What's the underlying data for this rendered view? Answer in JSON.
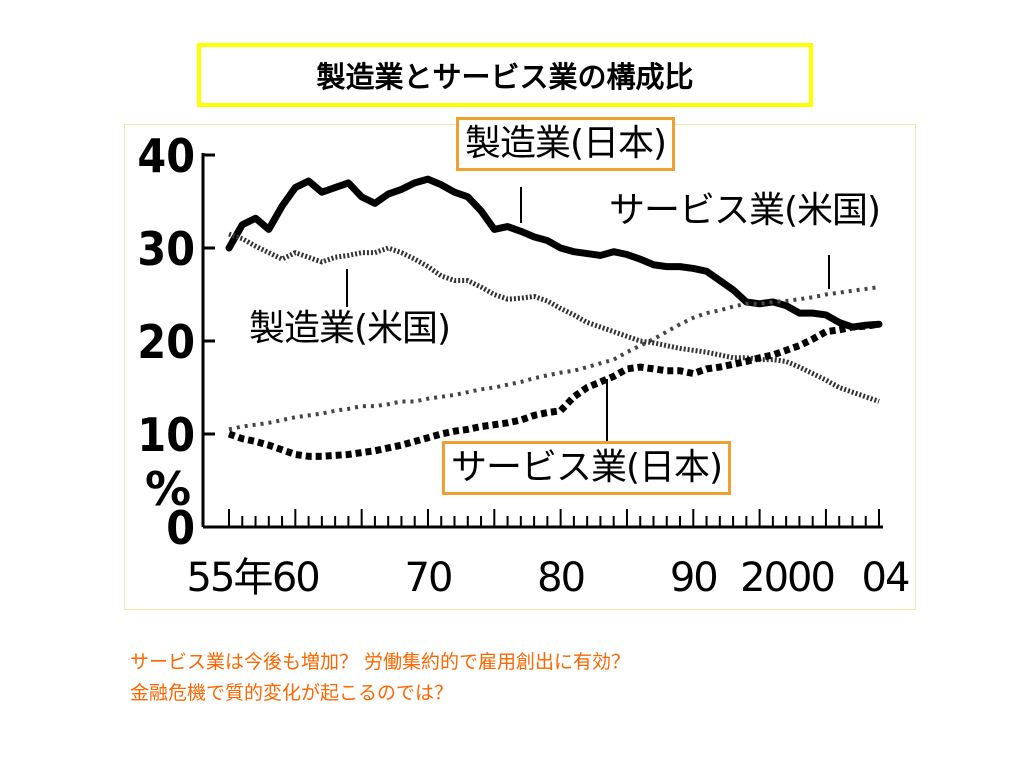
{
  "slide": {
    "title": "製造業とサービス業の構成比",
    "notes": [
      "サービス業は今後も増加？ 労働集約的で雇用創出に有効？",
      "金融危機で質的変化が起こるのでは？"
    ]
  },
  "chart_data": {
    "type": "line",
    "ylabel": "%",
    "ylim": [
      0,
      40
    ],
    "xlim": [
      1955,
      2004
    ],
    "yticks": [
      "0",
      "10",
      "20",
      "30",
      "40"
    ],
    "xticks": [
      {
        "x": 1955,
        "label": "55年"
      },
      {
        "x": 1960,
        "label": "60"
      },
      {
        "x": 1970,
        "label": "70"
      },
      {
        "x": 1980,
        "label": "80"
      },
      {
        "x": 1990,
        "label": "90"
      },
      {
        "x": 2000,
        "label": "2000"
      },
      {
        "x": 2004,
        "label": "04"
      }
    ],
    "x": [
      1955,
      1956,
      1957,
      1958,
      1959,
      1960,
      1961,
      1962,
      1963,
      1964,
      1965,
      1966,
      1967,
      1968,
      1969,
      1970,
      1971,
      1972,
      1973,
      1974,
      1975,
      1976,
      1977,
      1978,
      1979,
      1980,
      1981,
      1982,
      1983,
      1984,
      1985,
      1986,
      1987,
      1988,
      1989,
      1990,
      1991,
      1992,
      1993,
      1994,
      1995,
      1996,
      1997,
      1998,
      1999,
      2000,
      2001,
      2002,
      2003,
      2004
    ],
    "series": [
      {
        "name": "製造業(日本)",
        "style": "solid-thick",
        "color": "#000000",
        "values": [
          30.0,
          32.5,
          33.2,
          32.0,
          34.5,
          36.5,
          37.2,
          36.0,
          36.5,
          37.0,
          35.5,
          34.8,
          35.8,
          36.3,
          37.0,
          37.4,
          36.8,
          36.0,
          35.5,
          34.0,
          32.0,
          32.3,
          31.8,
          31.2,
          30.8,
          30.0,
          29.6,
          29.4,
          29.2,
          29.6,
          29.3,
          28.8,
          28.2,
          28.0,
          28.0,
          27.8,
          27.5,
          26.5,
          25.5,
          24.2,
          24.0,
          24.2,
          23.8,
          23.0,
          23.0,
          22.8,
          22.0,
          21.5,
          21.7,
          21.8
        ]
      },
      {
        "name": "サービス業(米国)",
        "style": "dotted-x",
        "color": "#444444",
        "values": [
          10.5,
          10.8,
          11.0,
          11.2,
          11.5,
          11.8,
          12.0,
          12.2,
          12.5,
          12.7,
          13.0,
          13.0,
          13.2,
          13.5,
          13.5,
          13.8,
          14.0,
          14.2,
          14.5,
          14.8,
          15.0,
          15.3,
          15.6,
          16.0,
          16.3,
          16.6,
          16.8,
          17.2,
          17.6,
          18.0,
          18.8,
          19.5,
          20.2,
          21.0,
          21.8,
          22.5,
          23.0,
          23.3,
          23.7,
          24.0,
          24.0,
          24.2,
          24.3,
          24.5,
          24.7,
          25.0,
          25.2,
          25.4,
          25.6,
          25.8
        ]
      },
      {
        "name": "製造業(米国)",
        "style": "hatched",
        "color": "#333333",
        "values": [
          31.5,
          31.0,
          30.2,
          29.5,
          28.8,
          29.5,
          29.0,
          28.5,
          29.0,
          29.2,
          29.5,
          29.5,
          30.0,
          29.5,
          28.8,
          28.0,
          27.0,
          26.5,
          26.5,
          25.8,
          25.0,
          24.5,
          24.6,
          24.8,
          24.3,
          23.5,
          22.8,
          22.0,
          21.5,
          21.0,
          20.5,
          20.0,
          19.8,
          19.5,
          19.2,
          19.0,
          18.8,
          18.5,
          18.2,
          18.2,
          18.0,
          18.0,
          17.8,
          17.2,
          16.5,
          15.8,
          15.0,
          14.5,
          14.0,
          13.5
        ]
      },
      {
        "name": "サービス業(日本)",
        "style": "dotted-thick",
        "color": "#000000",
        "values": [
          10.0,
          9.5,
          9.2,
          8.8,
          8.3,
          7.8,
          7.6,
          7.6,
          7.7,
          7.8,
          8.0,
          8.2,
          8.5,
          8.8,
          9.2,
          9.6,
          10.0,
          10.3,
          10.5,
          10.8,
          11.0,
          11.2,
          11.5,
          12.0,
          12.3,
          12.5,
          14.0,
          15.0,
          15.6,
          16.2,
          17.0,
          17.2,
          17.0,
          16.8,
          16.8,
          16.5,
          17.0,
          17.2,
          17.5,
          17.8,
          18.2,
          18.5,
          19.0,
          19.5,
          20.2,
          21.0,
          21.2,
          21.5,
          21.6,
          21.8
        ]
      }
    ]
  }
}
